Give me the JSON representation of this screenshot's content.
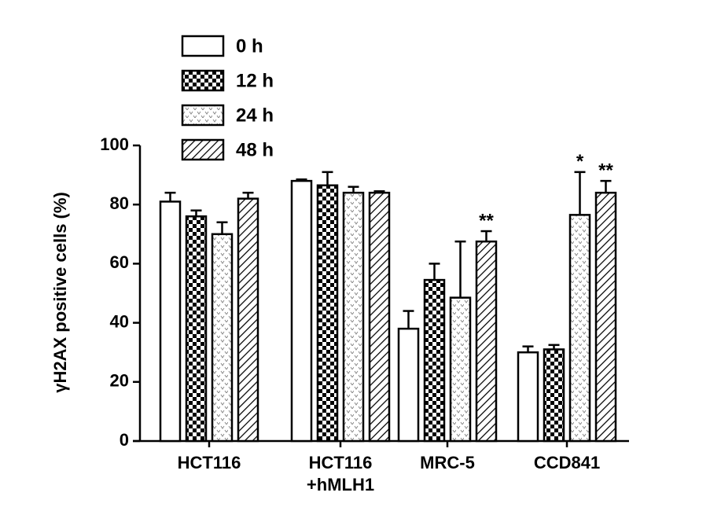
{
  "chart_data": {
    "type": "bar",
    "y_label": "γH2AX positive cells (%)",
    "categories": [
      "HCT116",
      "HCT116\n+hMLH1",
      "MRC-5",
      "CCD841"
    ],
    "series": [
      {
        "name": "0 h",
        "values": [
          81,
          88,
          38,
          30
        ],
        "errors": [
          3,
          0.5,
          6,
          2
        ]
      },
      {
        "name": "12 h",
        "values": [
          76,
          86.5,
          54.5,
          31
        ],
        "errors": [
          2,
          4.5,
          5.5,
          1.5
        ]
      },
      {
        "name": "24 h",
        "values": [
          70,
          84,
          48.5,
          76.5
        ],
        "errors": [
          4,
          2,
          19,
          14.5
        ],
        "significance": [
          null,
          null,
          null,
          "*"
        ]
      },
      {
        "name": "48 h",
        "values": [
          82,
          84,
          67.5,
          84
        ],
        "errors": [
          2,
          0.5,
          3.5,
          4
        ],
        "significance": [
          null,
          null,
          "**",
          "**"
        ]
      }
    ],
    "ylim": [
      0,
      100
    ],
    "yticks": [
      0,
      20,
      40,
      60,
      80,
      100
    ]
  }
}
